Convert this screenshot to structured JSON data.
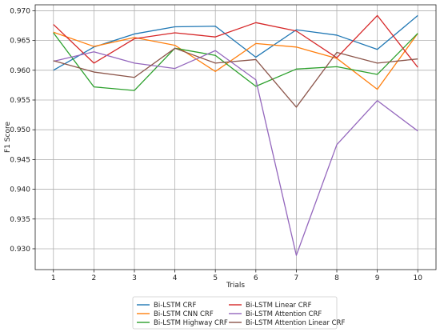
{
  "chart_data": {
    "type": "line",
    "xlabel": "Trials",
    "ylabel": "F1 Score",
    "x": [
      1,
      2,
      3,
      4,
      5,
      6,
      7,
      8,
      9,
      10
    ],
    "xlim": [
      0.55,
      10.45
    ],
    "ylim": [
      0.9265,
      0.971
    ],
    "xticks": [
      1,
      2,
      3,
      4,
      5,
      6,
      7,
      8,
      9,
      10
    ],
    "yticks": [
      "0.930",
      "0.935",
      "0.940",
      "0.945",
      "0.950",
      "0.955",
      "0.960",
      "0.965",
      "0.970"
    ],
    "grid": true,
    "legend_position": "bottom-center",
    "series": [
      {
        "name": "Bi-LSTM CRF",
        "color": "#1f77b4",
        "values": [
          0.96,
          0.9639,
          0.9661,
          0.9673,
          0.9674,
          0.9622,
          0.9668,
          0.9659,
          0.9635,
          0.9692
        ]
      },
      {
        "name": "Bi-LSTM CNN CRF",
        "color": "#ff7f0e",
        "values": [
          0.9664,
          0.964,
          0.9655,
          0.9642,
          0.9598,
          0.9645,
          0.9639,
          0.962,
          0.9568,
          0.9662
        ]
      },
      {
        "name": "Bi-LSTM Highway CRF",
        "color": "#2ca02c",
        "values": [
          0.9663,
          0.9572,
          0.9566,
          0.9637,
          0.9625,
          0.9573,
          0.9602,
          0.9606,
          0.9593,
          0.9662
        ]
      },
      {
        "name": "Bi-LSTM Linear CRF",
        "color": "#d62728",
        "values": [
          0.9677,
          0.9612,
          0.9653,
          0.9663,
          0.9656,
          0.968,
          0.9666,
          0.9621,
          0.9692,
          0.9605
        ]
      },
      {
        "name": "Bi-LSTM Attention CRF",
        "color": "#9467bd",
        "values": [
          0.9615,
          0.9631,
          0.9612,
          0.9603,
          0.9633,
          0.9584,
          0.9289,
          0.9475,
          0.9549,
          0.9498
        ]
      },
      {
        "name": "Bi-LSTM Attention Linear CRF",
        "color": "#8c564b",
        "values": [
          0.9616,
          0.9597,
          0.9588,
          0.9637,
          0.9612,
          0.9618,
          0.9538,
          0.963,
          0.9612,
          0.9619
        ]
      }
    ]
  }
}
